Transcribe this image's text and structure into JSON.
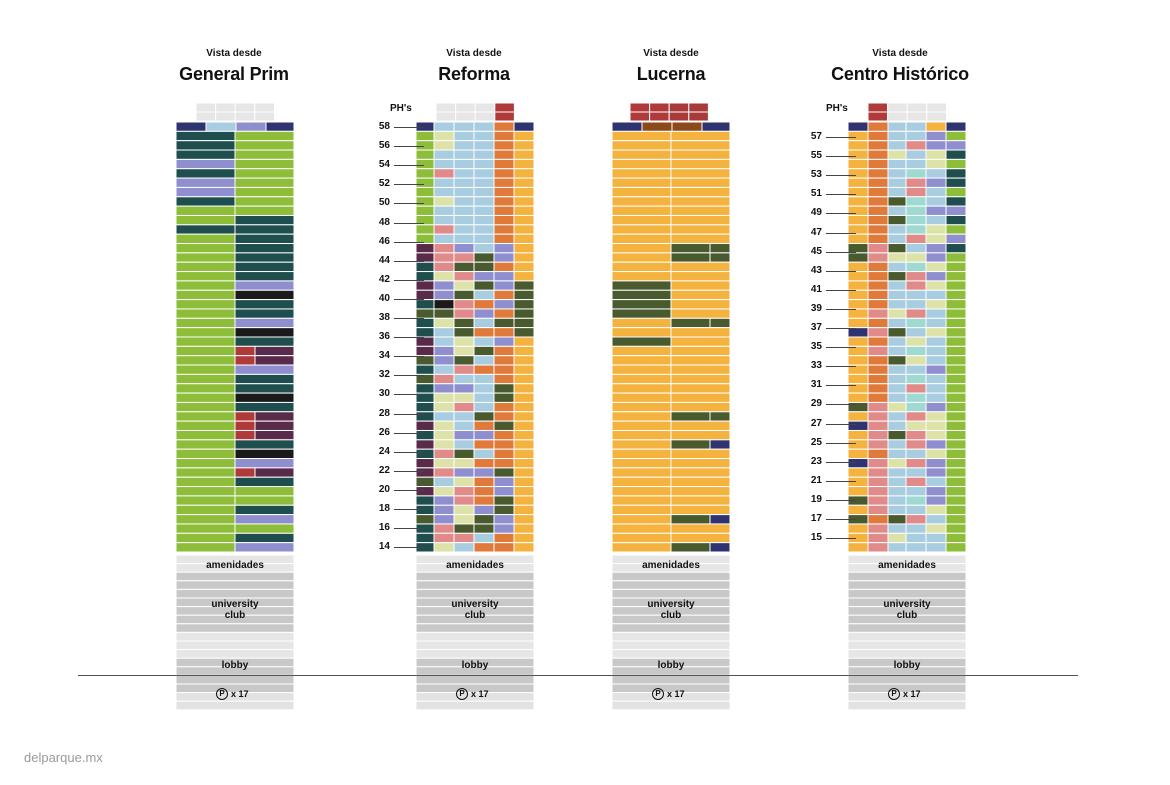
{
  "views": [
    {
      "prefix": "Vista desde",
      "title": "General Prim"
    },
    {
      "prefix": "Vista desde",
      "title": "Reforma"
    },
    {
      "prefix": "Vista desde",
      "title": "Lucerna"
    },
    {
      "prefix": "Vista desde",
      "title": "Centro Histórico"
    }
  ],
  "ph_label": "PH's",
  "floors_reforma": [
    "58",
    "56",
    "54",
    "52",
    "50",
    "48",
    "46",
    "44",
    "42",
    "40",
    "38",
    "36",
    "34",
    "32",
    "30",
    "28",
    "26",
    "24",
    "22",
    "20",
    "18",
    "16",
    "14"
  ],
  "floors_centro": [
    "57",
    "55",
    "53",
    "51",
    "49",
    "47",
    "45",
    "43",
    "41",
    "39",
    "37",
    "35",
    "33",
    "31",
    "29",
    "27",
    "25",
    "23",
    "21",
    "19",
    "17",
    "15"
  ],
  "podium": {
    "amenities": "amenidades",
    "club_line1": "university",
    "club_line2": "club",
    "lobby": "lobby",
    "parking_icon": "P",
    "parking_count": "x 17"
  },
  "site": "delparque.mx",
  "palette": {
    "orange": "#f4b23f",
    "green": "#8ebd3a",
    "teal": "#1f4e4f",
    "lavender": "#8f8fcf",
    "olive": "#4a5a2f",
    "maroon": "#5a2a4a",
    "red": "#b03a3a",
    "navy": "#2f3470",
    "lightblue": "#a8cce0",
    "pink": "#e08a8a",
    "salmon": "#e07a3a",
    "cream": "#dde2a8",
    "mint": "#9fdad2",
    "black": "#1a1a1a",
    "grey": "#c8c8c8",
    "lightgrey": "#e6e6e6"
  }
}
